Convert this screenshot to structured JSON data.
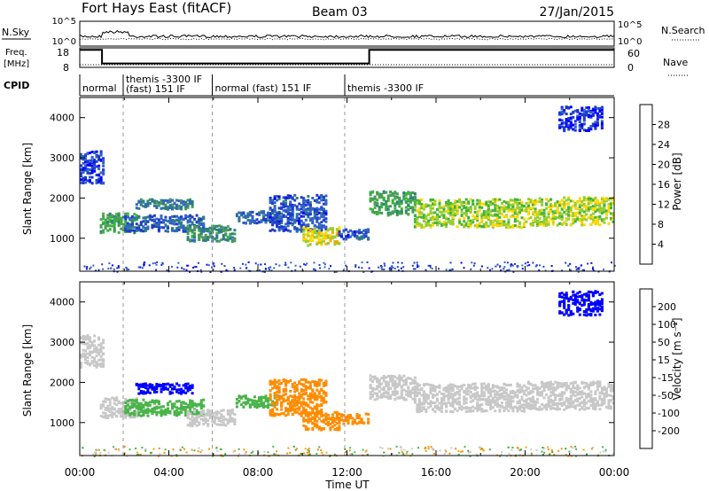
{
  "header": {
    "station": "Fort Hays East (fitACF)",
    "beam": "Beam 03",
    "date": "27/Jan/2015"
  },
  "chart_data": [
    {
      "type": "line",
      "panel": "noise",
      "left_label": "N.Sky",
      "right_label": "N.Search",
      "left_ticks": [
        "10^5",
        "10^0"
      ],
      "right_ticks": [
        "10^5",
        "10^0"
      ]
    },
    {
      "type": "line",
      "panel": "frequency",
      "left_label_lines": [
        "Freq.",
        "[MHz]"
      ],
      "right_label": "Nave",
      "left_ticks": [
        "18",
        "8"
      ],
      "right_ticks": [
        "60",
        "0"
      ],
      "freq_steps": [
        {
          "start": 0.0,
          "end": 1.0,
          "value": 17
        },
        {
          "start": 1.0,
          "end": 13.0,
          "value": 10
        },
        {
          "start": 13.0,
          "end": 24.0,
          "value": 17
        }
      ]
    },
    {
      "type": "table",
      "panel": "cpid",
      "label": "CPID",
      "segments": [
        {
          "start": 0.0,
          "end": 1.95,
          "lines": [
            "normal"
          ]
        },
        {
          "start": 1.95,
          "end": 5.95,
          "lines": [
            "themis -3300 IF",
            "(fast) 151 IF"
          ]
        },
        {
          "start": 5.95,
          "end": 11.9,
          "lines": [
            "normal (fast) 151 IF"
          ]
        },
        {
          "start": 11.9,
          "end": 24.0,
          "lines": [
            "themis -3300 IF"
          ]
        }
      ]
    },
    {
      "type": "heatmap",
      "panel": "power",
      "ylabel": "Slant Range [km]",
      "yticks": [
        1000,
        2000,
        3000,
        4000
      ],
      "ylim": [
        180,
        4500
      ],
      "xlim": [
        0,
        24
      ],
      "colorbar": {
        "label": "Power [dB]",
        "ticks": [
          "4",
          "8",
          "12",
          "16",
          "20",
          "24",
          "28"
        ],
        "colors": [
          "#0000ff",
          "#1e3cc8",
          "#3264c8",
          "#2f7f7f",
          "#4a9a5a",
          "#3cb43c",
          "#98cd32",
          "#ffd700",
          "#ffa500",
          "#ff6a00",
          "#ff3200",
          "#e60000"
        ]
      },
      "patches": [
        {
          "t0": 0.0,
          "t1": 1.0,
          "r0": 2400,
          "r1": 3200,
          "value": 6
        },
        {
          "t0": 0.9,
          "t1": 2.6,
          "r0": 1150,
          "r1": 1650,
          "value": 14
        },
        {
          "t0": 2.5,
          "t1": 5.0,
          "r0": 1750,
          "r1": 2000,
          "value": 10
        },
        {
          "t0": 2.0,
          "t1": 5.5,
          "r0": 1200,
          "r1": 1600,
          "value": 8
        },
        {
          "t0": 4.8,
          "t1": 6.9,
          "r0": 950,
          "r1": 1350,
          "value": 12
        },
        {
          "t0": 7.0,
          "t1": 9.0,
          "r0": 1400,
          "r1": 1700,
          "value": 9
        },
        {
          "t0": 8.5,
          "t1": 11.0,
          "r0": 1200,
          "r1": 2100,
          "value": 7
        },
        {
          "t0": 10.0,
          "t1": 11.6,
          "r0": 850,
          "r1": 1300,
          "value": 20
        },
        {
          "t0": 11.6,
          "t1": 12.9,
          "r0": 1000,
          "r1": 1250,
          "value": 7
        },
        {
          "t0": 13.0,
          "t1": 15.0,
          "r0": 1600,
          "r1": 2200,
          "value": 14
        },
        {
          "t0": 15.0,
          "t1": 20.0,
          "r0": 1300,
          "r1": 2000,
          "value": 18
        },
        {
          "t0": 20.0,
          "t1": 24.0,
          "r0": 1350,
          "r1": 2050,
          "value": 19
        },
        {
          "t0": 21.5,
          "t1": 23.5,
          "r0": 3700,
          "r1": 4300,
          "value": 5
        }
      ]
    },
    {
      "type": "heatmap",
      "panel": "velocity",
      "ylabel": "Slant Range [km]",
      "yticks": [
        1000,
        2000,
        3000,
        4000
      ],
      "ylim": [
        180,
        4500
      ],
      "xlim": [
        0,
        24
      ],
      "xticks": [
        "00:00",
        "04:00",
        "08:00",
        "12:00",
        "16:00",
        "20:00",
        "00:00"
      ],
      "xlabel": "Time UT",
      "colorbar": {
        "label": "Velocity [m s⁻¹]",
        "ticks": [
          "-200",
          "-100",
          "-50",
          "-15",
          "15",
          "50",
          "100",
          "200"
        ],
        "colors": [
          "#e60000",
          "#ff4500",
          "#ff8c00",
          "#ffa500",
          "#c8c8c8",
          "#4ab44a",
          "#32a032",
          "#3c64c8",
          "#0000ff"
        ]
      },
      "patches": [
        {
          "t0": 0.0,
          "t1": 1.0,
          "r0": 2400,
          "r1": 3200,
          "value": 0
        },
        {
          "t0": 0.9,
          "t1": 2.6,
          "r0": 1150,
          "r1": 1650,
          "value": 0
        },
        {
          "t0": 2.5,
          "t1": 5.0,
          "r0": 1750,
          "r1": 2000,
          "value": 200
        },
        {
          "t0": 2.0,
          "t1": 5.5,
          "r0": 1200,
          "r1": 1600,
          "value": 40
        },
        {
          "t0": 4.8,
          "t1": 6.9,
          "r0": 950,
          "r1": 1350,
          "value": 0
        },
        {
          "t0": 7.0,
          "t1": 9.0,
          "r0": 1400,
          "r1": 1700,
          "value": 40
        },
        {
          "t0": 8.5,
          "t1": 11.0,
          "r0": 1200,
          "r1": 2100,
          "value": -40
        },
        {
          "t0": 10.0,
          "t1": 11.6,
          "r0": 850,
          "r1": 1300,
          "value": -60
        },
        {
          "t0": 11.6,
          "t1": 12.9,
          "r0": 1000,
          "r1": 1250,
          "value": -60
        },
        {
          "t0": 13.0,
          "t1": 15.0,
          "r0": 1600,
          "r1": 2200,
          "value": 0
        },
        {
          "t0": 15.0,
          "t1": 20.0,
          "r0": 1300,
          "r1": 2000,
          "value": 0
        },
        {
          "t0": 20.0,
          "t1": 24.0,
          "r0": 1350,
          "r1": 2050,
          "value": 0
        },
        {
          "t0": 21.5,
          "t1": 23.5,
          "r0": 3700,
          "r1": 4300,
          "value": 200
        }
      ]
    }
  ]
}
